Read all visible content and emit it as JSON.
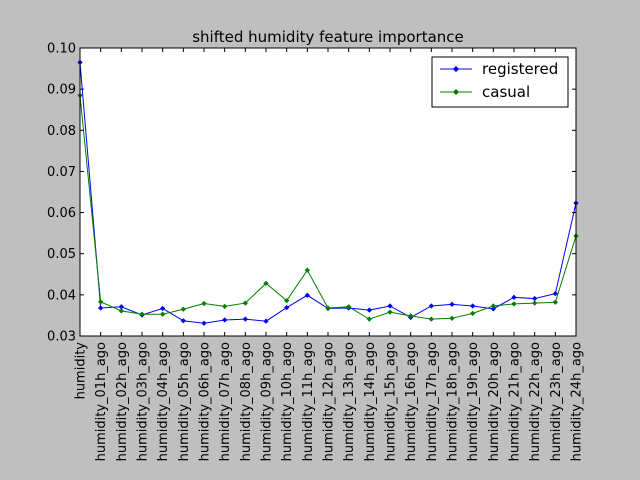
{
  "chart_data": {
    "type": "line",
    "title": "shifted humidity feature importance",
    "xlabel": "",
    "ylabel": "",
    "categories": [
      "humidity",
      "humidity_01h_ago",
      "humidity_02h_ago",
      "humidity_03h_ago",
      "humidity_04h_ago",
      "humidity_05h_ago",
      "humidity_06h_ago",
      "humidity_07h_ago",
      "humidity_08h_ago",
      "humidity_09h_ago",
      "humidity_10h_ago",
      "humidity_11h_ago",
      "humidity_12h_ago",
      "humidity_13h_ago",
      "humidity_14h_ago",
      "humidity_15h_ago",
      "humidity_16h_ago",
      "humidity_17h_ago",
      "humidity_18h_ago",
      "humidity_19h_ago",
      "humidity_20h_ago",
      "humidity_21h_ago",
      "humidity_22h_ago",
      "humidity_23h_ago",
      "humidity_24h_ago"
    ],
    "ylim": [
      0.03,
      0.1
    ],
    "yticks": [
      "0.03",
      "0.04",
      "0.05",
      "0.06",
      "0.07",
      "0.08",
      "0.09",
      "0.10"
    ],
    "grid": false,
    "legend_position": "top-right",
    "series": [
      {
        "name": "registered",
        "color": "#0000ff",
        "values": [
          0.0965,
          0.0368,
          0.0371,
          0.0351,
          0.0367,
          0.0337,
          0.0331,
          0.0339,
          0.0341,
          0.0336,
          0.0369,
          0.0399,
          0.0367,
          0.0368,
          0.0363,
          0.0373,
          0.0345,
          0.0373,
          0.0377,
          0.0373,
          0.0366,
          0.0394,
          0.0391,
          0.0403,
          0.0623
        ]
      },
      {
        "name": "casual",
        "color": "#008000",
        "values": [
          0.0885,
          0.0383,
          0.0361,
          0.0353,
          0.0353,
          0.0365,
          0.0379,
          0.0372,
          0.038,
          0.0428,
          0.0386,
          0.046,
          0.0368,
          0.0371,
          0.0341,
          0.0358,
          0.0349,
          0.0341,
          0.0343,
          0.0355,
          0.0373,
          0.0378,
          0.038,
          0.0382,
          0.0543
        ]
      }
    ]
  }
}
